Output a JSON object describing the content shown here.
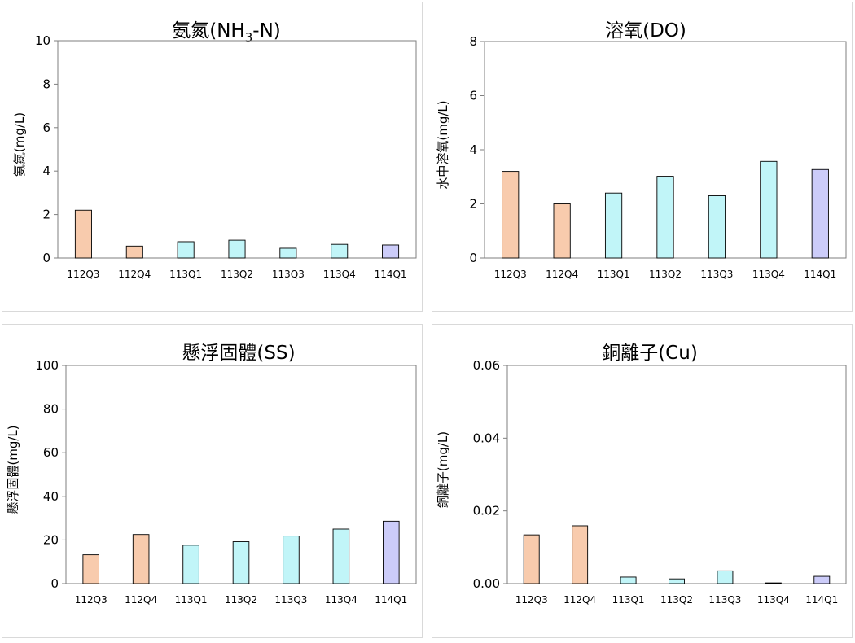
{
  "series_colors": {
    "112": "#f8cbad",
    "113": "#c1f5f8",
    "114": "#ccccf9"
  },
  "chart_data": [
    {
      "type": "bar",
      "title": "氨氮(NH3-N)",
      "title_main": "氨氮(NH",
      "title_sub": "3",
      "title_end": "-N)",
      "ylabel": "氨氮(mg/L)",
      "categories": [
        "112Q3",
        "112Q4",
        "113Q1",
        "113Q2",
        "113Q3",
        "113Q4",
        "114Q1"
      ],
      "values": [
        2.2,
        0.55,
        0.75,
        0.82,
        0.45,
        0.63,
        0.6
      ],
      "ylim": [
        0,
        10
      ],
      "yticks": [
        "0",
        "2",
        "4",
        "6",
        "8",
        "10"
      ],
      "grid": false
    },
    {
      "type": "bar",
      "title": "溶氧(DO)",
      "ylabel": "水中溶氧(mg/L)",
      "categories": [
        "112Q3",
        "112Q4",
        "113Q1",
        "113Q2",
        "113Q3",
        "113Q4",
        "114Q1"
      ],
      "values": [
        3.2,
        2.0,
        2.4,
        3.02,
        2.3,
        3.57,
        3.27
      ],
      "ylim": [
        0,
        8
      ],
      "yticks": [
        "0",
        "2",
        "4",
        "6",
        "8"
      ],
      "grid": false
    },
    {
      "type": "bar",
      "title": "懸浮固體(SS)",
      "ylabel": "懸浮固體(mg/L)",
      "categories": [
        "112Q3",
        "112Q4",
        "113Q1",
        "113Q2",
        "113Q3",
        "113Q4",
        "114Q1"
      ],
      "values": [
        13.2,
        22.5,
        17.6,
        19.2,
        21.8,
        25.0,
        28.6
      ],
      "ylim": [
        0,
        100
      ],
      "yticks": [
        "0",
        "20",
        "40",
        "60",
        "80",
        "100"
      ],
      "grid": false
    },
    {
      "type": "bar",
      "title": "銅離子(Cu)",
      "ylabel": "銅離子(mg/L)",
      "categories": [
        "112Q3",
        "112Q4",
        "113Q1",
        "113Q2",
        "113Q3",
        "113Q4",
        "114Q1"
      ],
      "values": [
        0.0134,
        0.0159,
        0.0018,
        0.0013,
        0.0035,
        0.0002,
        0.002
      ],
      "ylim": [
        0,
        0.06
      ],
      "yticks": [
        "0.00",
        "0.02",
        "0.04",
        "0.06"
      ],
      "grid": false
    }
  ]
}
